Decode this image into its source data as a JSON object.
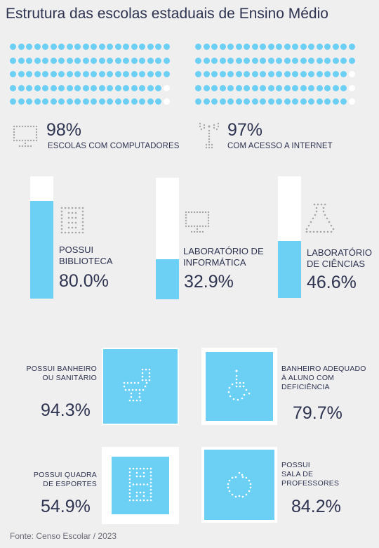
{
  "title": "Estrutura das escolas estaduais de Ensino Médio",
  "colors": {
    "accent": "#6ccff4",
    "text": "#2e3350",
    "background": "#efefef",
    "empty": "#ffffff"
  },
  "top_stats": [
    {
      "value_text": "98%",
      "value": 98,
      "label": "ESCOLAS COM COMPUTADORES",
      "icon": "computer-icon"
    },
    {
      "value_text": "97%",
      "value": 97,
      "label": "COM ACESSO A INTERNET",
      "icon": "antenna-icon"
    }
  ],
  "bars": [
    {
      "line1": "POSSUI",
      "line2": "BIBLIOTECA",
      "value_text": "80.0%",
      "value": 80.0,
      "icon": "book-icon"
    },
    {
      "line1": "LABORATÓRIO DE",
      "line2": "INFORMÁTICA",
      "value_text": "32.9%",
      "value": 32.9,
      "icon": "computer-icon"
    },
    {
      "line1": "LABORATÓRIO",
      "line2": "DE CIÊNCIAS",
      "value_text": "46.6%",
      "value": 46.6,
      "icon": "flask-icon"
    }
  ],
  "squares": [
    {
      "lines": [
        "POSSUI BANHEIRO",
        "OU SANITÁRIO"
      ],
      "value_text": "94.3%",
      "value": 94.3,
      "icon": "toilet-icon"
    },
    {
      "lines": [
        "BANHEIRO ADEQUADO",
        "À ALUNO COM",
        "DEFICIÊNCIA"
      ],
      "value_text": "79.7%",
      "value": 79.7,
      "icon": "wheelchair-icon"
    },
    {
      "lines": [
        "POSSUI QUADRA",
        "DE ESPORTES"
      ],
      "value_text": "54.9%",
      "value": 54.9,
      "icon": "sports-court-icon"
    },
    {
      "lines": [
        "POSSUI",
        "SALA DE",
        "PROFESSORES"
      ],
      "value_text": "84.2%",
      "value": 84.2,
      "icon": "apple-icon"
    }
  ],
  "footer": "Fonte: Censo Escolar / 2023"
}
